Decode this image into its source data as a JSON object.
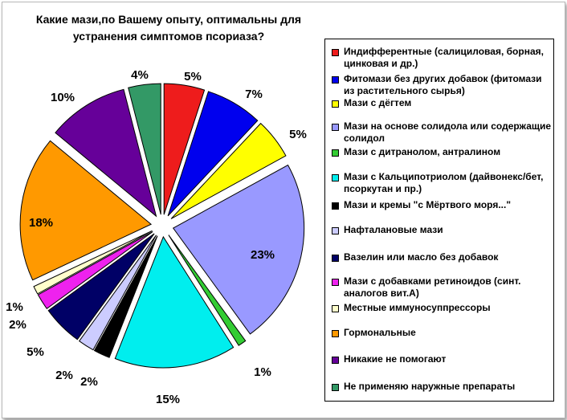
{
  "chart_data": {
    "type": "pie",
    "title": "Какие мази,по Вашему опыту, оптимальны для устранения симптомов псориаза?",
    "categories": [
      "Индифферентные (салициловая, борная, цинковая и др.)",
      "Фитомази без других добавок (фитомази из растительного сырья)",
      "Мази с дёгтем",
      "Мази на основе солидола или содержащие солидол",
      "Мази с дитранолом, антралином",
      "Мази с Кальципотриолом (дайвонекс/бет, псоркутан и пр.)",
      "Мази и кремы \"с Мёртвого моря...\"",
      "Нафталановые мази",
      "Вазелин или масло без добавок",
      "Мази с добавками ретиноидов (синт. аналогов вит.А)",
      "Местные иммуносуппрессоры",
      "Гормональные",
      "Никакие не помогают",
      "Не применяю наружные препараты"
    ],
    "values": [
      5,
      7,
      5,
      23,
      1,
      15,
      2,
      2,
      5,
      2,
      1,
      18,
      10,
      4
    ],
    "labels": [
      "5%",
      "7%",
      "5%",
      "23%",
      "1%",
      "15%",
      "2%",
      "2%",
      "5%",
      "2%",
      "1%",
      "18%",
      "10%",
      "4%"
    ],
    "colors": [
      "#ee1c1c",
      "#0000ee",
      "#ffff00",
      "#9999ff",
      "#33cc33",
      "#00eeee",
      "#000000",
      "#ccccff",
      "#000066",
      "#ee22ee",
      "#ffffcc",
      "#ff9900",
      "#660099",
      "#339966"
    ],
    "legend_placement": "right"
  }
}
